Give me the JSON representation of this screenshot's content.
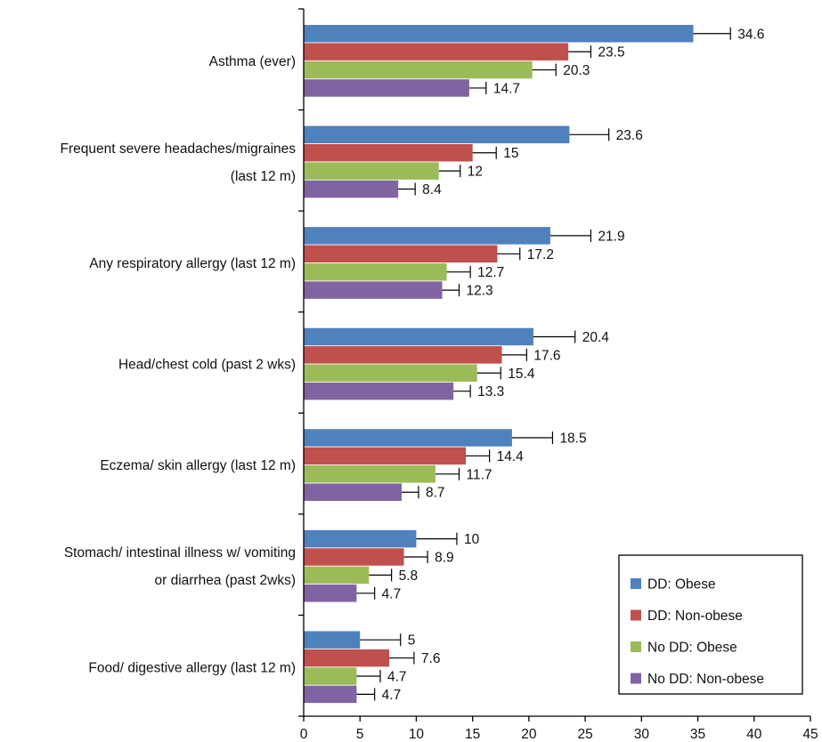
{
  "chart_data": {
    "type": "bar",
    "orientation": "horizontal",
    "categories": [
      [
        "Asthma (ever)"
      ],
      [
        "Frequent severe headaches/migraines",
        "(last 12 m)"
      ],
      [
        "Any respiratory allergy (last 12 m)"
      ],
      [
        "Head/chest cold (past 2 wks)"
      ],
      [
        "Eczema/ skin allergy (last 12 m)"
      ],
      [
        "Stomach/ intestinal illness w/ vomiting",
        "or diarrhea (past 2wks)"
      ],
      [
        "Food/ digestive allergy (last 12 m)"
      ]
    ],
    "series": [
      {
        "name": "DD: Obese",
        "color": "#4f81bd",
        "values": [
          34.6,
          23.6,
          21.9,
          20.4,
          18.5,
          10,
          5
        ],
        "labels": [
          "34.6",
          "23.6",
          "21.9",
          "20.4",
          "18.5",
          "10",
          "5"
        ],
        "error_upper": [
          37.9,
          27.1,
          25.5,
          24.1,
          22.1,
          13.6,
          8.6
        ]
      },
      {
        "name": "DD: Non-obese",
        "color": "#c0504d",
        "values": [
          23.5,
          15,
          17.2,
          17.6,
          14.4,
          8.9,
          7.6
        ],
        "labels": [
          "23.5",
          "15",
          "17.2",
          "17.6",
          "14.4",
          "8.9",
          "7.6"
        ],
        "error_upper": [
          25.5,
          17.1,
          19.2,
          19.8,
          16.5,
          11.0,
          9.8
        ]
      },
      {
        "name": "No DD: Obese",
        "color": "#9bbb59",
        "values": [
          20.3,
          12,
          12.7,
          15.4,
          11.7,
          5.8,
          4.7
        ],
        "labels": [
          "20.3",
          "12",
          "12.7",
          "15.4",
          "11.7",
          "5.8",
          "4.7"
        ],
        "error_upper": [
          22.4,
          13.9,
          14.8,
          17.5,
          13.8,
          7.8,
          6.8
        ]
      },
      {
        "name": "No DD: Non-obese",
        "color": "#8064a2",
        "values": [
          14.7,
          8.4,
          12.3,
          13.3,
          8.7,
          4.7,
          4.7
        ],
        "labels": [
          "14.7",
          "8.4",
          "12.3",
          "13.3",
          "8.7",
          "4.7",
          "4.7"
        ],
        "error_upper": [
          16.2,
          9.9,
          13.8,
          14.8,
          10.2,
          6.3,
          6.3
        ]
      }
    ],
    "xlim": [
      0,
      45
    ],
    "xticks": [
      0,
      5,
      10,
      15,
      20,
      25,
      30,
      35,
      40,
      45
    ],
    "title": "",
    "xlabel": "",
    "ylabel": "",
    "grid": false,
    "legend_position": "bottom-right"
  }
}
